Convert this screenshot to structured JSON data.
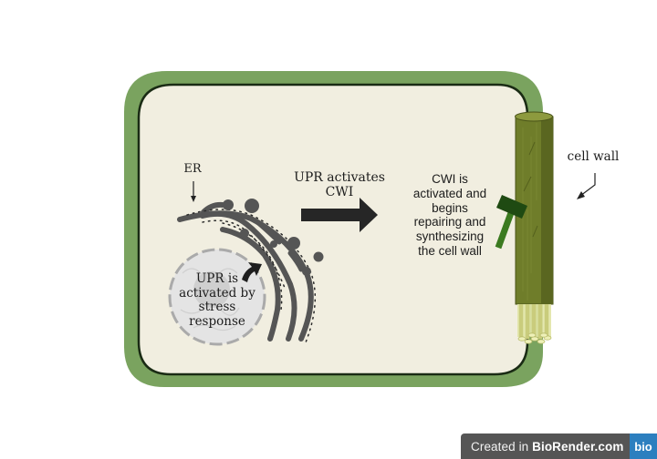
{
  "labels": {
    "er": "ER",
    "upr_activates": "UPR activates CWI",
    "upr_stress": "UPR is activated by stress response",
    "cwi_repair": "CWI is activated and begins repairing and synthesizing the cell wall",
    "cell_wall": "cell wall"
  },
  "watermark": {
    "prefix": "Created in ",
    "brand": "BioRender.com",
    "logo": "bio"
  },
  "colors": {
    "cell_wall_outer": "#7aa35f",
    "cytoplasm": "#f1eee0",
    "cell_border": "#1a2b14",
    "er": "#555555",
    "arrow": "#262626",
    "fiber": "#6f7d2a",
    "hammer": "#2f5f1f"
  }
}
